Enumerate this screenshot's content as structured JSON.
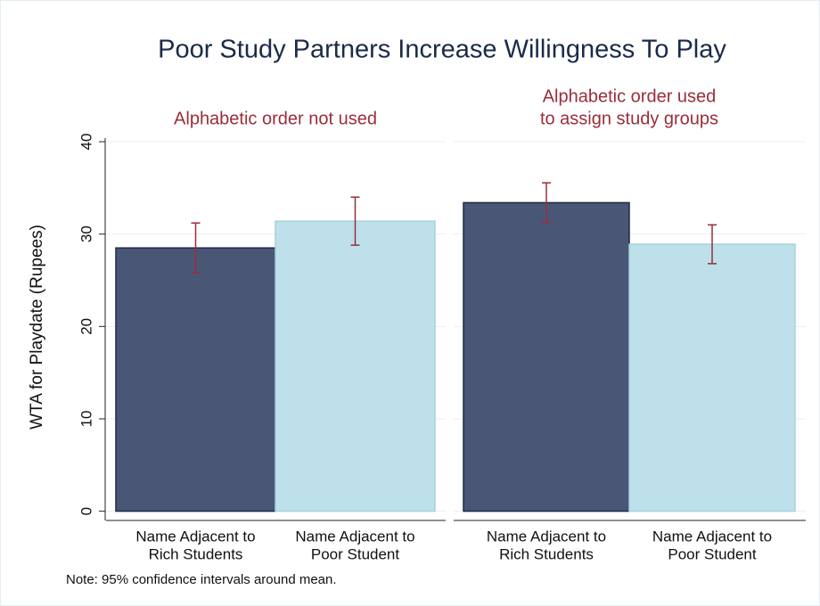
{
  "chart_data": {
    "type": "bar",
    "title": "Poor Study Partners Increase Willingness To Play",
    "ylabel": "WTA for Playdate (Rupees)",
    "note": "Note: 95% confidence intervals around mean.",
    "ylim": [
      -1,
      40
    ],
    "yticks": [
      0,
      10,
      20,
      30,
      40
    ],
    "grid": true,
    "colors": [
      "#4a5676",
      "#bde0ea"
    ],
    "error_color": "#9b2d3a",
    "panels": [
      {
        "subtitle": [
          "Alphabetic order not used"
        ],
        "categories": [
          [
            "Name Adjacent to",
            "Rich Students"
          ],
          [
            "Name Adjacent to",
            "Poor Student"
          ]
        ],
        "values": [
          28.5,
          31.4
        ],
        "errors": [
          2.7,
          2.6
        ]
      },
      {
        "subtitle": [
          "Alphabetic order used",
          "to assign study groups"
        ],
        "categories": [
          [
            "Name Adjacent to",
            "Rich Students"
          ],
          [
            "Name Adjacent to",
            "Poor Student"
          ]
        ],
        "values": [
          33.4,
          28.9
        ],
        "errors": [
          2.15,
          2.1
        ]
      }
    ]
  }
}
